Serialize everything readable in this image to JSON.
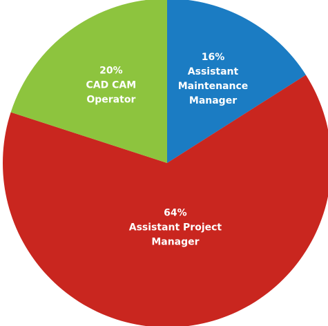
{
  "chart_data": {
    "type": "pie",
    "categories": [
      "Assistant Maintenance Manager",
      "Assistant Project Manager",
      "CAD CAM Operator"
    ],
    "values": [
      16,
      64,
      20
    ],
    "value_labels": [
      "16%",
      "64%",
      "20%"
    ],
    "colors": [
      "#1b7cc3",
      "#c9261f",
      "#8dc43e"
    ]
  }
}
